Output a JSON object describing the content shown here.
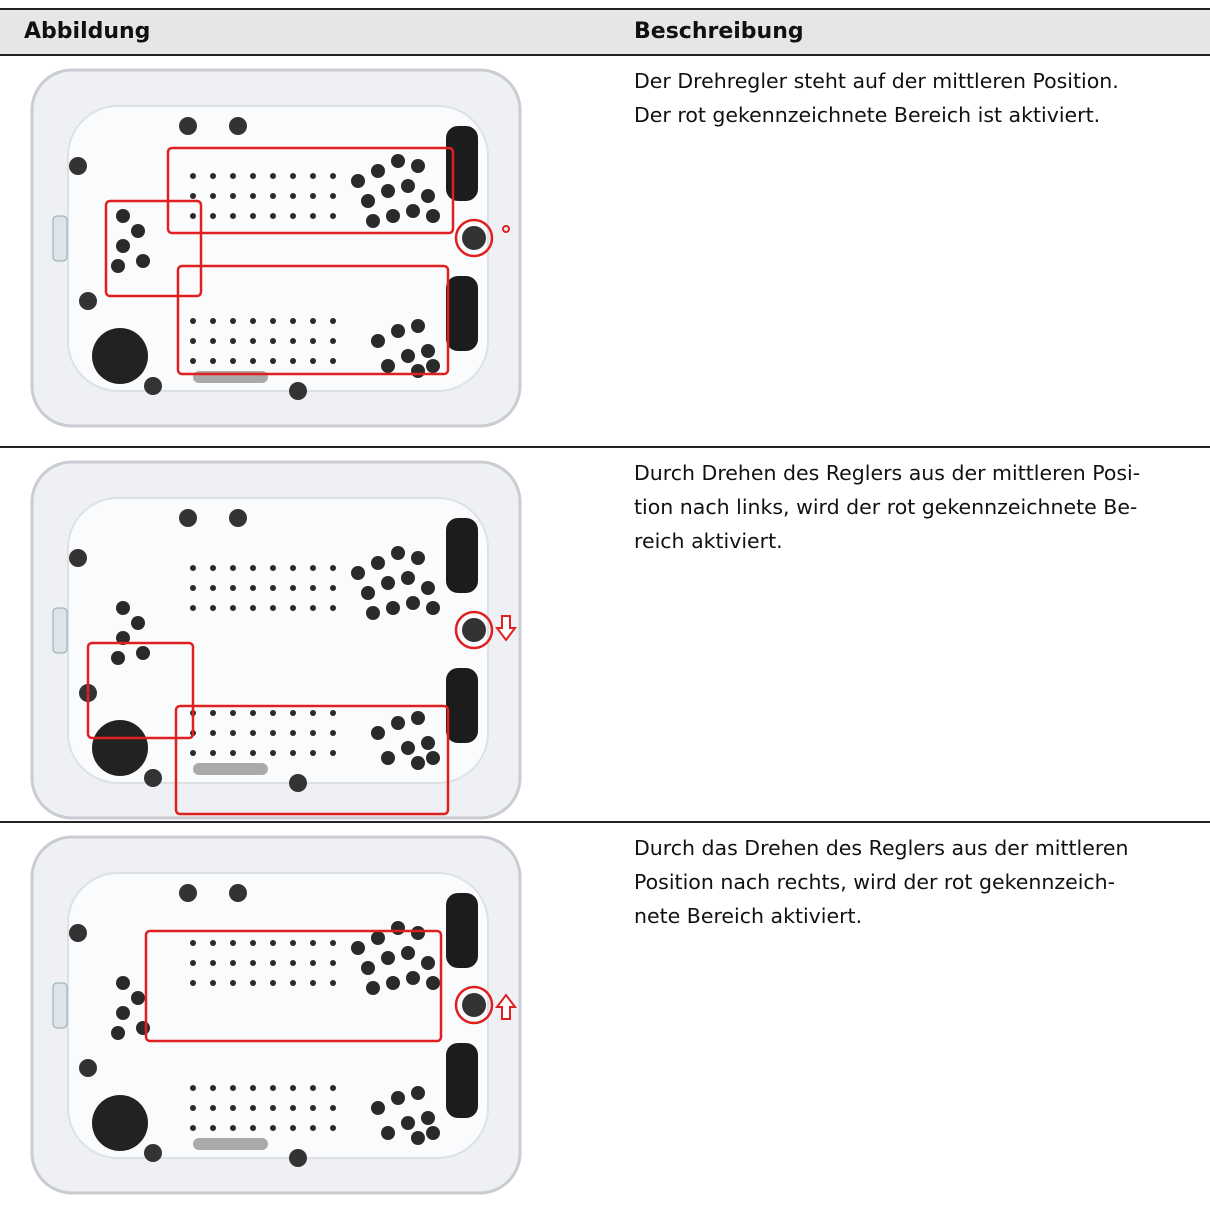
{
  "table": {
    "header": [
      "Abbildung",
      "Beschreibung"
    ],
    "rows": [
      {
        "description": [
          "Der Drehregler steht auf der mittleren Position.",
          "Der rot gekennzeichnete Bereich ist aktiviert."
        ]
      },
      {
        "description": [
          "Durch Drehen des Reglers aus der mittleren Posi-",
          "tion nach links, wird der rot gekennzeichnete Be-",
          "reich aktiviert."
        ]
      },
      {
        "description": [
          "Durch das Drehen des Reglers aus der mittleren",
          "Position nach rechts, wird der rot gekennzeich-",
          "nete Bereich aktiviert."
        ]
      }
    ]
  }
}
